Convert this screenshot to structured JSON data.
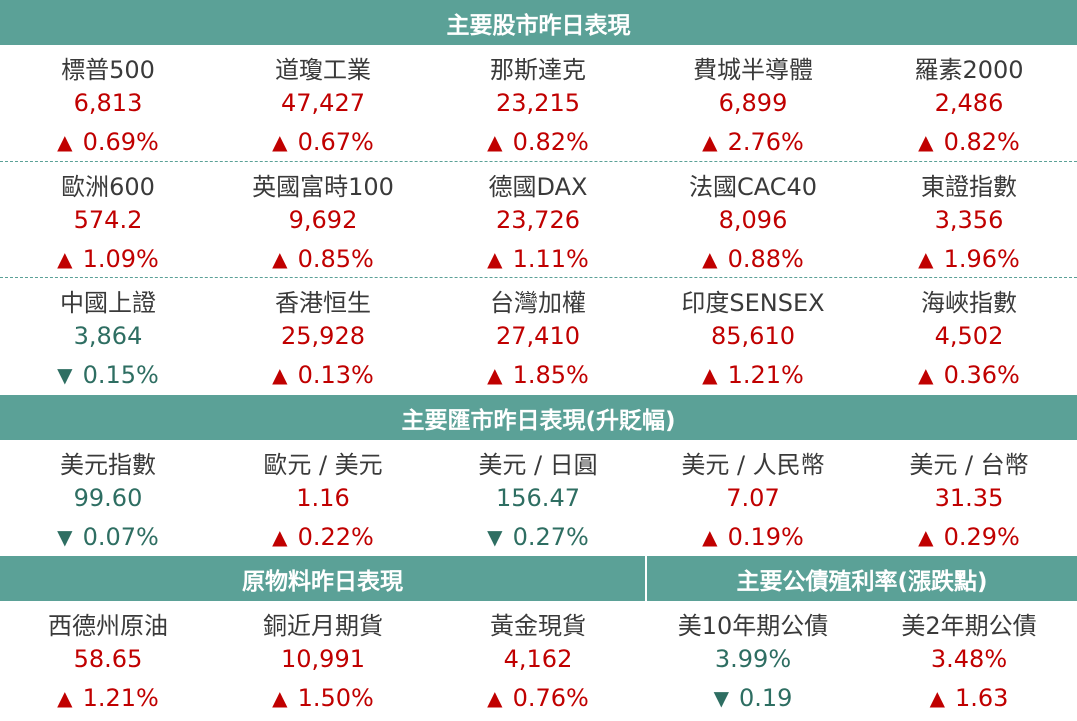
{
  "colors": {
    "header_bg": "#5ba197",
    "up": "#c00000",
    "down": "#2e6e62"
  },
  "sections": {
    "stocks": {
      "title": "主要股市昨日表現",
      "rows": [
        [
          {
            "name": "標普500",
            "value": "6,813",
            "dir": "up",
            "change": "0.69%"
          },
          {
            "name": "道瓊工業",
            "value": "47,427",
            "dir": "up",
            "change": "0.67%"
          },
          {
            "name": "那斯達克",
            "value": "23,215",
            "dir": "up",
            "change": "0.82%"
          },
          {
            "name": "費城半導體",
            "value": "6,899",
            "dir": "up",
            "change": "2.76%"
          },
          {
            "name": "羅素2000",
            "value": "2,486",
            "dir": "up",
            "change": "0.82%"
          }
        ],
        [
          {
            "name": "歐洲600",
            "value": "574.2",
            "dir": "up",
            "change": "1.09%"
          },
          {
            "name": "英國富時100",
            "value": "9,692",
            "dir": "up",
            "change": "0.85%"
          },
          {
            "name": "德國DAX",
            "value": "23,726",
            "dir": "up",
            "change": "1.11%"
          },
          {
            "name": "法國CAC40",
            "value": "8,096",
            "dir": "up",
            "change": "0.88%"
          },
          {
            "name": "東證指數",
            "value": "3,356",
            "dir": "up",
            "change": "1.96%"
          }
        ],
        [
          {
            "name": "中國上證",
            "value": "3,864",
            "dir": "down",
            "change": "0.15%"
          },
          {
            "name": "香港恒生",
            "value": "25,928",
            "dir": "up",
            "change": "0.13%"
          },
          {
            "name": "台灣加權",
            "value": "27,410",
            "dir": "up",
            "change": "1.85%"
          },
          {
            "name": "印度SENSEX",
            "value": "85,610",
            "dir": "up",
            "change": "1.21%"
          },
          {
            "name": "海峽指數",
            "value": "4,502",
            "dir": "up",
            "change": "0.36%"
          }
        ]
      ]
    },
    "fx": {
      "title": "主要匯市昨日表現(升貶幅)",
      "rows": [
        [
          {
            "name": "美元指數",
            "value": "99.60",
            "dir": "down",
            "change": "0.07%"
          },
          {
            "name": "歐元 / 美元",
            "value": "1.16",
            "dir": "up",
            "change": "0.22%"
          },
          {
            "name": "美元 / 日圓",
            "value": "156.47",
            "dir": "down",
            "change": "0.27%"
          },
          {
            "name": "美元 / 人民幣",
            "value": "7.07",
            "dir": "up",
            "change": "0.19%"
          },
          {
            "name": "美元 / 台幣",
            "value": "31.35",
            "dir": "up",
            "change": "0.29%"
          }
        ]
      ]
    },
    "commodities": {
      "title": "原物料昨日表現",
      "items": [
        {
          "name": "西德州原油",
          "value": "58.65",
          "dir": "up",
          "change": "1.21%"
        },
        {
          "name": "銅近月期貨",
          "value": "10,991",
          "dir": "up",
          "change": "1.50%"
        },
        {
          "name": "黃金現貨",
          "value": "4,162",
          "dir": "up",
          "change": "0.76%"
        }
      ]
    },
    "bonds": {
      "title": "主要公債殖利率(漲跌點)",
      "items": [
        {
          "name": "美10年期公債",
          "value": "3.99%",
          "dir": "down",
          "change": "0.19"
        },
        {
          "name": "美2年期公債",
          "value": "3.48%",
          "dir": "up",
          "change": "1.63"
        }
      ]
    }
  },
  "icons": {
    "up": "triangle-up-icon",
    "down": "triangle-down-icon"
  }
}
